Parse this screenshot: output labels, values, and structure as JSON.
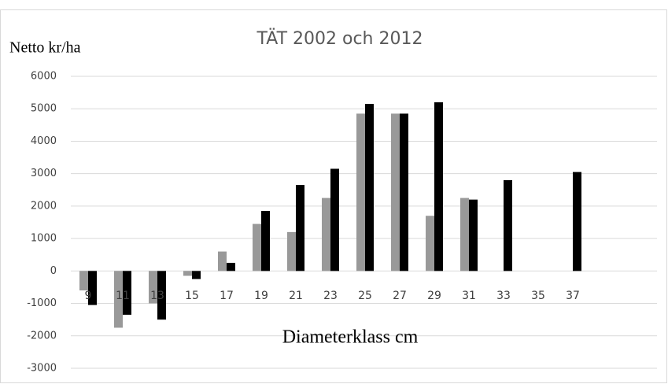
{
  "chart_data": {
    "type": "bar",
    "title": "TÄT 2002 och 2012",
    "y_axis_label": "Netto kr/ha",
    "x_axis_label": "Diameterklass cm",
    "categories": [
      "9",
      "11",
      "13",
      "15",
      "17",
      "19",
      "21",
      "23",
      "25",
      "27",
      "29",
      "31",
      "33",
      "35",
      "37",
      null,
      null
    ],
    "series": [
      {
        "color": "#999999",
        "values": [
          -600,
          -1750,
          -1000,
          -150,
          600,
          1450,
          1200,
          2250,
          4850,
          4850,
          1700,
          2250,
          null,
          null,
          null,
          null,
          null
        ]
      },
      {
        "color": "#000000",
        "values": [
          -1050,
          -1350,
          -1500,
          -250,
          250,
          1850,
          2650,
          3150,
          5150,
          4850,
          5200,
          2200,
          2800,
          null,
          3050,
          null,
          null
        ]
      }
    ],
    "ylim": [
      -3000,
      6000
    ],
    "yticks": [
      -3000,
      -2000,
      -1000,
      0,
      1000,
      2000,
      3000,
      4000,
      5000,
      6000
    ],
    "grid": true
  }
}
